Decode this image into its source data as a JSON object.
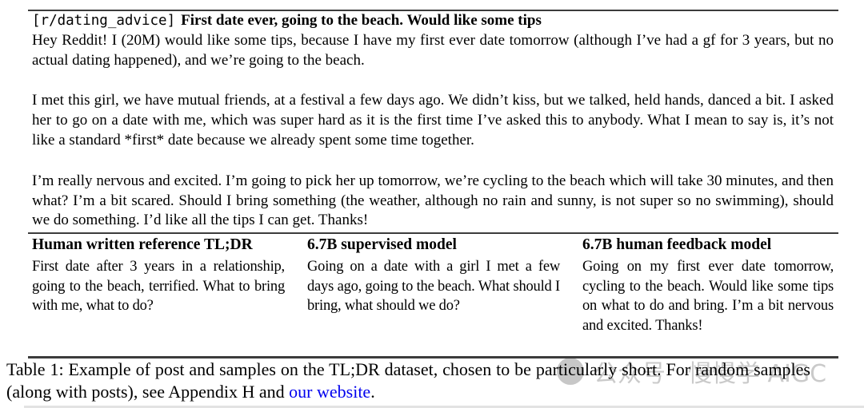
{
  "post": {
    "subreddit_tag": "[r/dating_advice]",
    "title": "First date ever, going to the beach. Would like some tips",
    "paragraphs": [
      "Hey Reddit! I (20M) would like some tips, because I have my first ever date tomorrow (although I’ve had a gf for 3 years, but no actual dating happened), and we’re going to the beach.",
      "I met this girl, we have mutual friends, at a festival a few days ago. We didn’t kiss, but we talked, held hands, danced a bit. I asked her to go on a date with me, which was super hard as it is the first time I’ve asked this to anybody. What I mean to say is, it’s not like a standard *first* date because we already spent some time together.",
      "I’m really nervous and excited. I’m going to pick her up tomorrow, we’re cycling to the beach which will take 30 minutes, and then what? I’m a bit scared. Should I bring something (the weather, although no rain and sunny, is not super so no swimming), should we do something. I’d like all the tips I can get. Thanks!"
    ]
  },
  "samples_table": {
    "columns": [
      {
        "header": "Human written reference TL;DR",
        "body": "First date after 3 years in a relation­ship, going to the beach, terrified. What to bring with me, what to do?"
      },
      {
        "header": "6.7B supervised model",
        "body": "Going on a date with a girl I met a few days ago, going to the beach. What should I bring, what should we do?"
      },
      {
        "header": "6.7B human feedback model",
        "body": "Going on my first ever date tomor­row, cycling to the beach. Would like some tips on what to do and bring. I’m a bit nervous and excited. Thanks!"
      }
    ]
  },
  "caption": {
    "text_before_link": "Table 1: Example of post and samples on the TL;DR dataset, chosen to be particularly short. For random samples (along with posts), see Appendix H and ",
    "link_text": "our website",
    "text_after_link": "."
  },
  "watermark": {
    "text_left": "公众号",
    "text_right": "慢慢学 AIGC"
  },
  "colors": {
    "text": "#000000",
    "link_blue": "#0000ee",
    "rule": "#3c3c3c",
    "watermark_gray": "#9f9f9f"
  }
}
